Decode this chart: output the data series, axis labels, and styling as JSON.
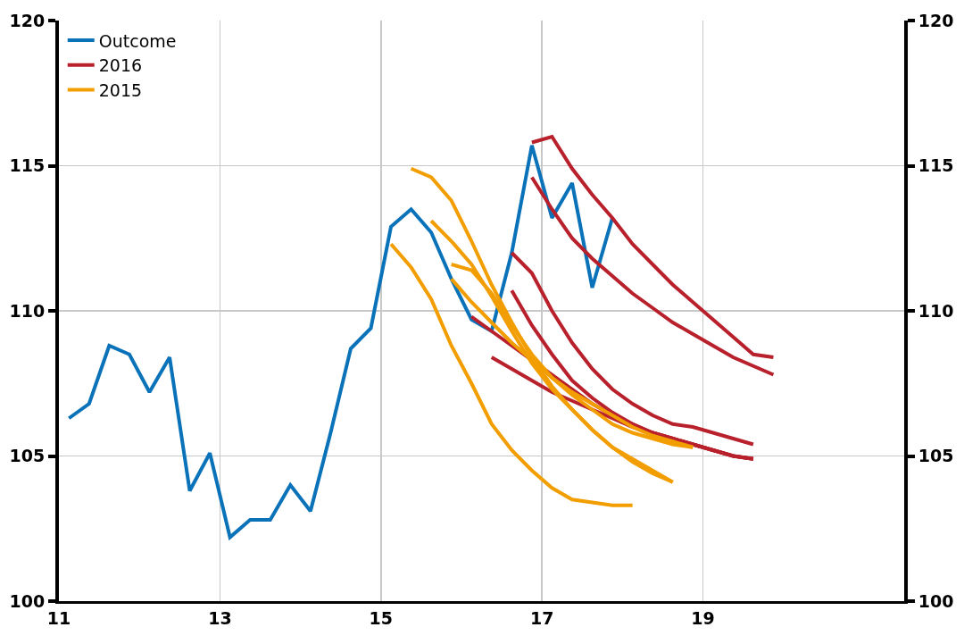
{
  "chart_data": {
    "type": "line",
    "xlim": [
      11,
      21.5
    ],
    "xticks": [
      11,
      13,
      15,
      17,
      19
    ],
    "ylim": [
      100,
      120
    ],
    "yticks": [
      100,
      105,
      110,
      115,
      120
    ],
    "y2lim": [
      100,
      120
    ],
    "y2ticks": [
      100,
      105,
      110,
      115,
      120
    ],
    "grid": true,
    "legend": "top left",
    "line_style": "solid",
    "marker": "none",
    "series": [
      {
        "name": "Outcome",
        "color": "#0a72b8",
        "x": [
          11.125,
          11.375,
          11.625,
          11.875,
          12.125,
          12.375,
          12.625,
          12.875,
          13.125,
          13.375,
          13.625,
          13.875,
          14.125,
          14.375,
          14.625,
          14.875,
          15.125,
          15.375,
          15.625,
          15.875,
          16.125,
          16.375,
          16.625,
          16.875,
          17.125,
          17.375,
          17.625,
          17.875
        ],
        "values": [
          106.3,
          106.8,
          108.8,
          108.5,
          107.2,
          108.4,
          103.8,
          105.1,
          102.2,
          102.8,
          102.8,
          104.0,
          103.1,
          105.8,
          108.7,
          109.4,
          112.9,
          113.5,
          112.7,
          111.1,
          109.7,
          109.3,
          112.0,
          115.7,
          113.2,
          114.4,
          110.8,
          113.2
        ]
      },
      {
        "name": "2016",
        "color": "#b8202c",
        "x": [
          16.875,
          17.125,
          17.375,
          17.625,
          17.875,
          18.125,
          18.375,
          18.625,
          18.875,
          19.125,
          19.375,
          19.625,
          19.875
        ],
        "values": [
          115.8,
          116.0,
          114.9,
          114.0,
          113.2,
          112.3,
          111.6,
          110.9,
          110.3,
          109.7,
          109.1,
          108.5,
          108.4
        ]
      },
      {
        "color": "#b8202c",
        "x": [
          16.875,
          17.125,
          17.375,
          17.625,
          17.875,
          18.125,
          18.375,
          18.625,
          18.875,
          19.125,
          19.375,
          19.625,
          19.875
        ],
        "values": [
          114.6,
          113.5,
          112.5,
          111.8,
          111.2,
          110.6,
          110.1,
          109.6,
          109.2,
          108.8,
          108.4,
          108.1,
          107.8
        ]
      },
      {
        "color": "#b8202c",
        "x": [
          16.625,
          16.875,
          17.125,
          17.375,
          17.625,
          17.875,
          18.125,
          18.375,
          18.625,
          18.875,
          19.125,
          19.375,
          19.625
        ],
        "values": [
          112.0,
          111.3,
          110.0,
          108.9,
          108.0,
          107.3,
          106.8,
          106.4,
          106.1,
          106.0,
          105.8,
          105.6,
          105.4
        ]
      },
      {
        "color": "#b8202c",
        "x": [
          16.625,
          16.875,
          17.125,
          17.375,
          17.625,
          17.875,
          18.125,
          18.375,
          18.625,
          18.875,
          19.125,
          19.375,
          19.625
        ],
        "values": [
          110.7,
          109.5,
          108.5,
          107.6,
          107.0,
          106.5,
          106.1,
          105.8,
          105.6,
          105.4,
          105.2,
          105.0,
          104.9
        ]
      },
      {
        "color": "#b8202c",
        "x": [
          16.125,
          16.375,
          16.625,
          16.875,
          17.125,
          17.375,
          17.625,
          17.875,
          18.125,
          18.375,
          18.625,
          18.875,
          19.125,
          19.375,
          19.625
        ],
        "values": [
          109.8,
          109.3,
          108.8,
          108.3,
          107.8,
          107.3,
          106.8,
          106.4,
          106.1,
          105.8,
          105.6,
          105.4,
          105.2,
          105.0,
          104.9
        ]
      },
      {
        "color": "#b8202c",
        "x": [
          16.375,
          16.625,
          16.875,
          17.125,
          17.375,
          17.625,
          17.875,
          18.125,
          18.375,
          18.625,
          18.875,
          19.125,
          19.375,
          19.625
        ],
        "values": [
          108.4,
          108.0,
          107.6,
          107.2,
          106.9,
          106.6,
          106.3,
          106.0,
          105.8,
          105.6,
          105.4,
          105.2,
          105.0,
          104.9
        ]
      },
      {
        "name": "2015",
        "color": "#f29d00",
        "x": [
          15.375,
          15.625,
          15.875,
          16.125,
          16.375,
          16.625,
          16.875,
          17.125,
          17.375,
          17.625,
          17.875,
          18.125,
          18.375,
          18.625
        ],
        "values": [
          114.9,
          114.6,
          113.8,
          112.4,
          110.9,
          109.6,
          108.4,
          107.4,
          106.6,
          105.9,
          105.3,
          104.8,
          104.4,
          104.1
        ]
      },
      {
        "color": "#f29d00",
        "x": [
          15.125,
          15.375,
          15.625,
          15.875,
          16.125,
          16.375,
          16.625,
          16.875,
          17.125,
          17.375,
          17.625,
          17.875,
          18.125
        ],
        "values": [
          112.3,
          111.5,
          110.4,
          108.8,
          107.5,
          106.1,
          105.2,
          104.5,
          103.9,
          103.5,
          103.4,
          103.3,
          103.3
        ]
      },
      {
        "color": "#f29d00",
        "x": [
          15.625,
          15.875,
          16.125,
          16.375,
          16.625,
          16.875,
          17.125,
          17.375,
          17.625,
          17.875,
          18.125,
          18.375,
          18.625
        ],
        "values": [
          113.1,
          112.4,
          111.6,
          110.5,
          109.3,
          108.2,
          107.3,
          106.6,
          105.9,
          105.3,
          104.9,
          104.5,
          104.1
        ]
      },
      {
        "color": "#f29d00",
        "x": [
          15.875,
          16.125,
          16.375,
          16.625,
          16.875,
          17.125,
          17.375,
          17.625,
          17.875,
          18.125,
          18.375,
          18.625,
          18.875
        ],
        "values": [
          111.6,
          111.4,
          110.6,
          109.5,
          108.5,
          107.7,
          107.1,
          106.6,
          106.1,
          105.8,
          105.6,
          105.4,
          105.3
        ]
      },
      {
        "color": "#f29d00",
        "x": [
          15.875,
          16.125,
          16.375,
          16.625,
          16.875,
          17.125,
          17.375,
          17.625,
          17.875,
          18.125,
          18.375,
          18.625,
          18.875
        ],
        "values": [
          111.1,
          110.3,
          109.6,
          108.9,
          108.3,
          107.7,
          107.2,
          106.8,
          106.4,
          106.0,
          105.7,
          105.5,
          105.3
        ]
      }
    ]
  }
}
